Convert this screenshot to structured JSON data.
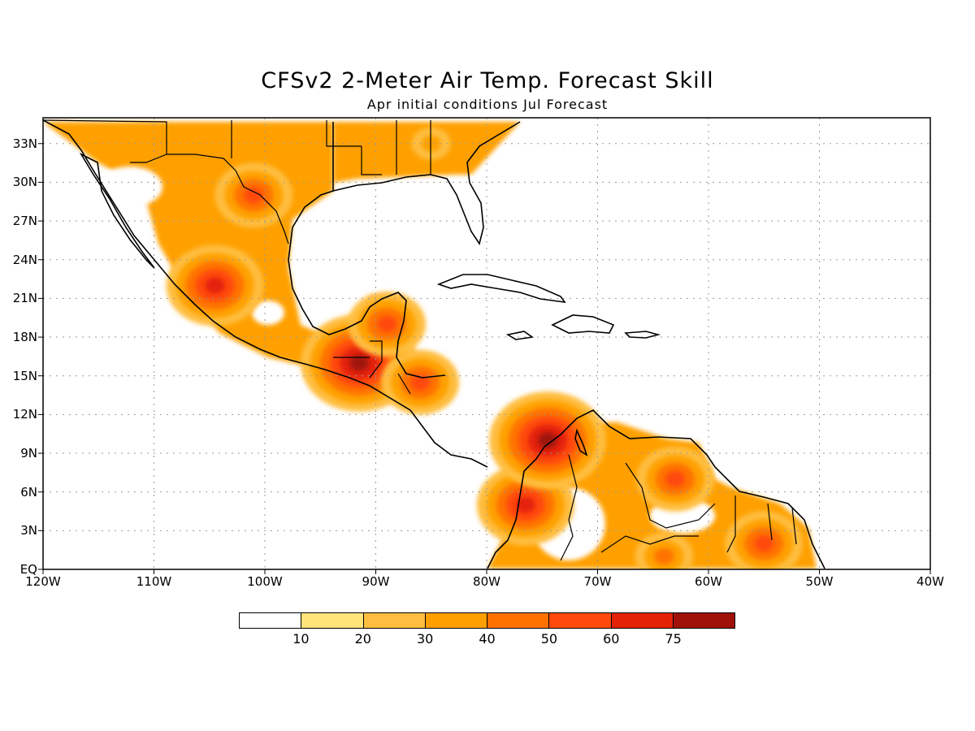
{
  "title": "CFSv2 2-Meter Air Temp. Forecast Skill",
  "subtitle": "Apr initial conditions  Jul Forecast",
  "lat_labels": [
    "33N",
    "30N",
    "27N",
    "24N",
    "21N",
    "18N",
    "15N",
    "12N",
    "9N",
    "6N",
    "3N",
    "EQ"
  ],
  "lon_labels": [
    "120W",
    "110W",
    "100W",
    "90W",
    "80W",
    "70W",
    "60W",
    "50W",
    "40W"
  ],
  "legend": {
    "colors": [
      "#ffffff",
      "#ffe47a",
      "#ffbe40",
      "#ffa000",
      "#ff7200",
      "#ff4a0c",
      "#e42208",
      "#a01208"
    ],
    "labels": [
      "10",
      "20",
      "30",
      "40",
      "50",
      "60",
      "75"
    ]
  },
  "map_data": {
    "region": {
      "lon_range": [
        -120,
        -40
      ],
      "lat_range": [
        0,
        35
      ]
    },
    "grid": "dotted",
    "fields": [
      {
        "name": "northern-mexico-texas",
        "lon": -101,
        "lat": 29,
        "level": 5
      },
      {
        "name": "sierra-madre-west",
        "lon": -104.5,
        "lat": 22,
        "level": 6
      },
      {
        "name": "guatemala",
        "lon": -91.5,
        "lat": 16,
        "level": 7
      },
      {
        "name": "yucatan",
        "lon": -89,
        "lat": 19,
        "level": 5
      },
      {
        "name": "honduras",
        "lon": -86,
        "lat": 14.5,
        "level": 5
      },
      {
        "name": "colombia-west",
        "lon": -76.5,
        "lat": 5,
        "level": 6
      },
      {
        "name": "colombia-north",
        "lon": -74.5,
        "lat": 10,
        "level": 7
      },
      {
        "name": "venezuela",
        "lon": -63,
        "lat": 7,
        "level": 5
      },
      {
        "name": "guianas",
        "lon": -55,
        "lat": 2,
        "level": 5
      },
      {
        "name": "amazon-north",
        "lon": -64,
        "lat": 1,
        "level": 4
      },
      {
        "name": "southeast-us",
        "lon": -85,
        "lat": 33,
        "level": 3
      }
    ]
  }
}
